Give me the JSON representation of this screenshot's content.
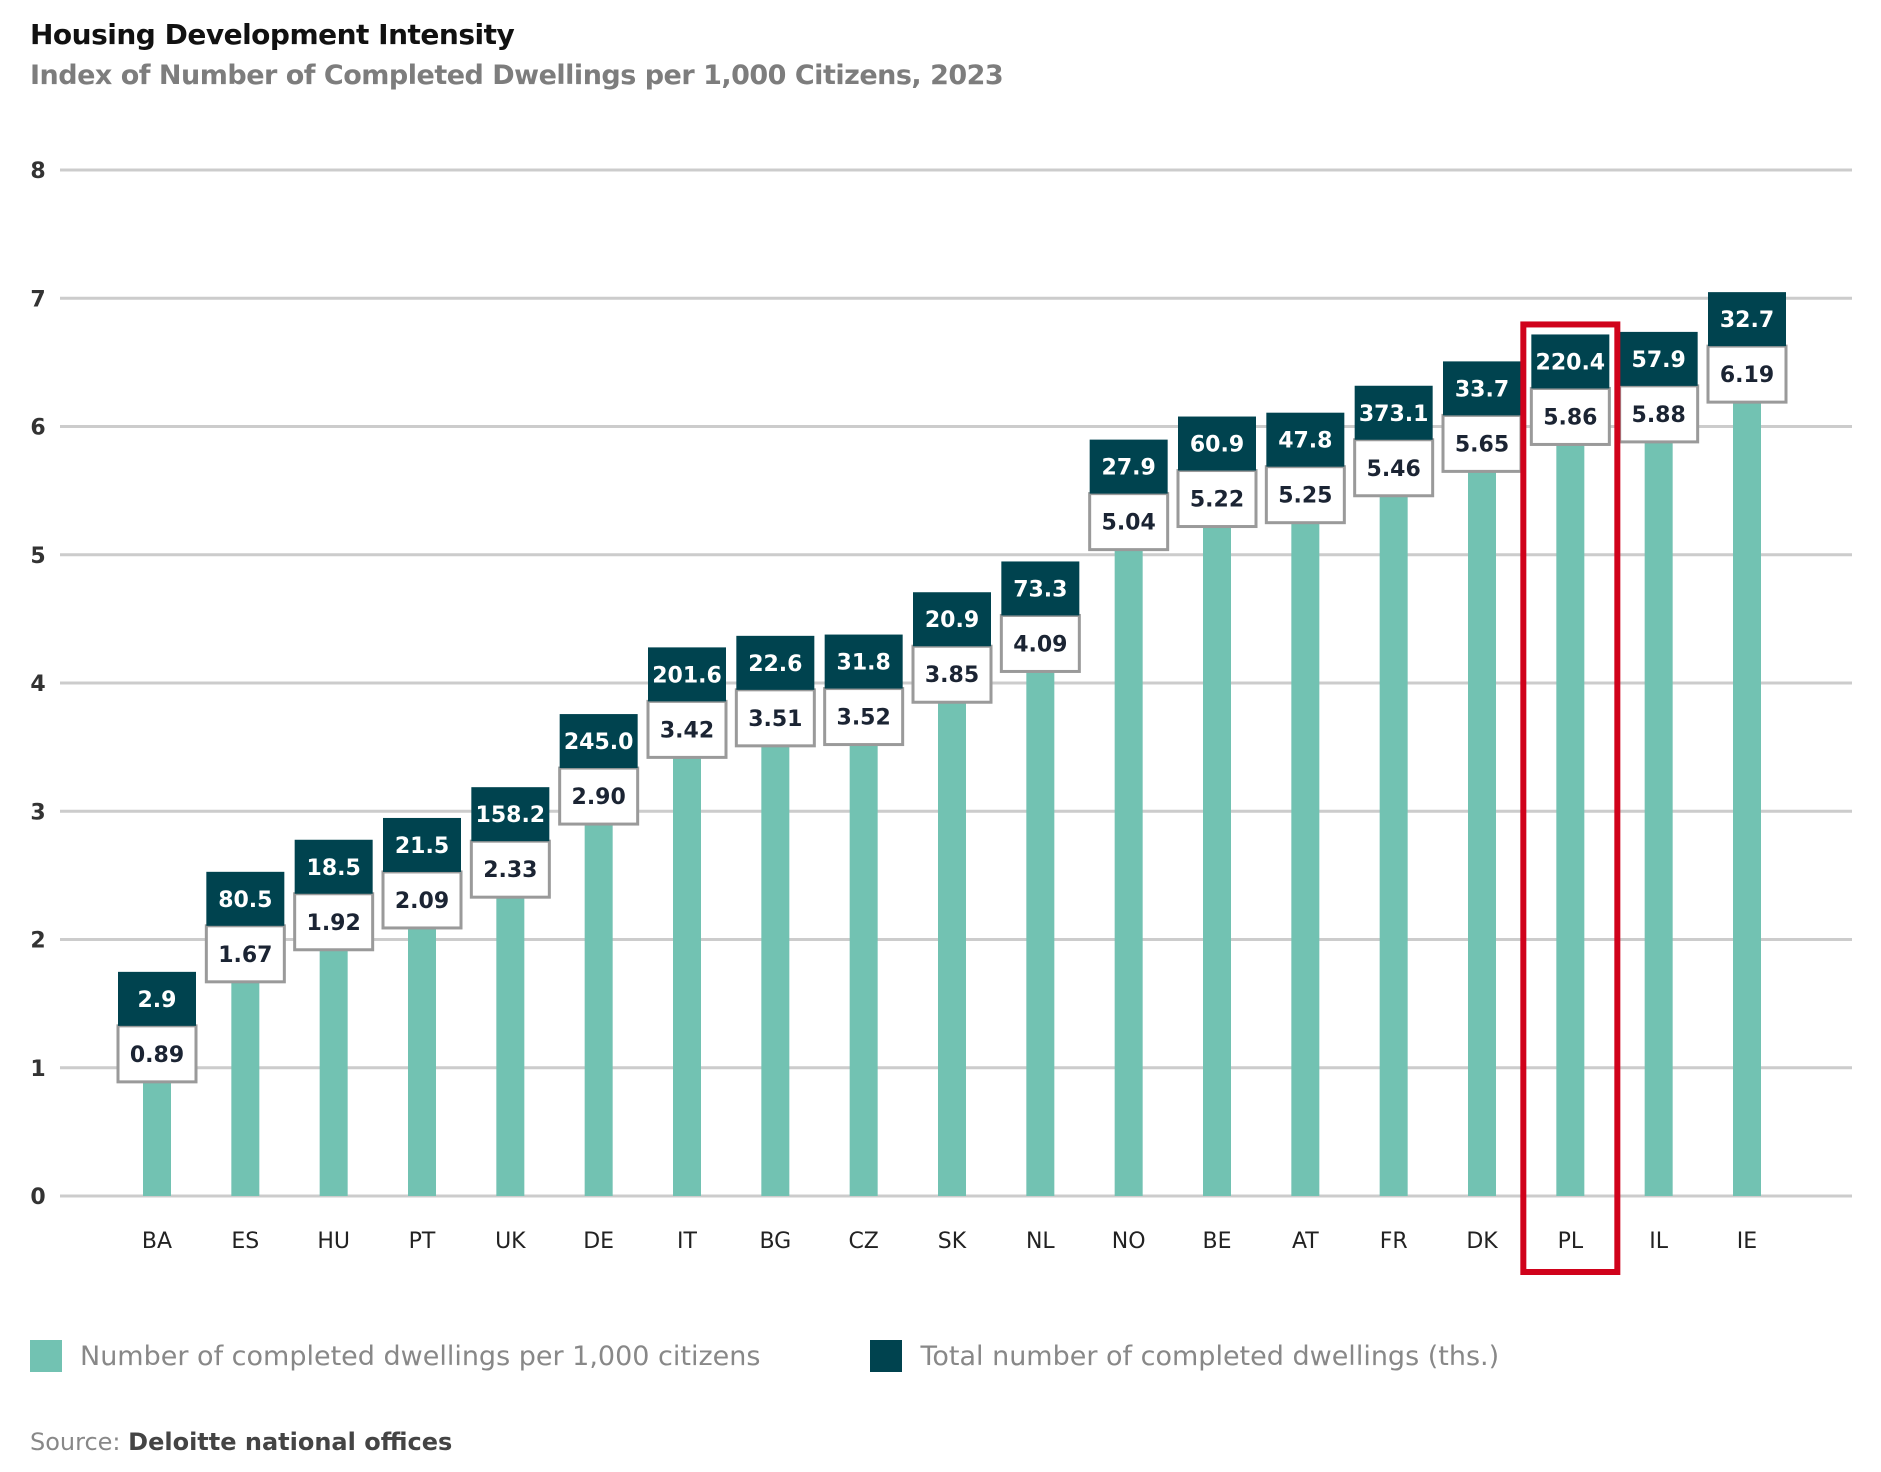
{
  "header": {
    "title": "Housing Development Intensity",
    "subtitle": "Index of Number of Completed Dwellings per 1,000 Citizens, 2023"
  },
  "colors": {
    "per_capita": "#72c2b2",
    "total": "#00434f",
    "highlight": "#d0021b",
    "grid": "#cccccc"
  },
  "chart_data": {
    "type": "bar",
    "title": "Housing Development Intensity",
    "subtitle": "Index of Number of Completed Dwellings per 1,000 Citizens, 2023",
    "xlabel": "",
    "ylabel": "",
    "ylim": [
      0,
      8
    ],
    "yticks": [
      0,
      1,
      2,
      3,
      4,
      5,
      6,
      7,
      8
    ],
    "grid": true,
    "legend_position": "bottom",
    "categories": [
      "BA",
      "ES",
      "HU",
      "PT",
      "UK",
      "DE",
      "IT",
      "BG",
      "CZ",
      "SK",
      "NL",
      "NO",
      "BE",
      "AT",
      "FR",
      "DK",
      "PL",
      "IL",
      "IE"
    ],
    "series": [
      {
        "name": "Number of completed dwellings per 1,000 citizens",
        "values": [
          0.89,
          1.67,
          1.92,
          2.09,
          2.33,
          2.9,
          3.42,
          3.51,
          3.52,
          3.85,
          4.09,
          5.04,
          5.22,
          5.25,
          5.46,
          5.65,
          5.86,
          5.88,
          6.19
        ],
        "labels": [
          "0.89",
          "1.67",
          "1.92",
          "2.09",
          "2.33",
          "2.90",
          "3.42",
          "3.51",
          "3.52",
          "3.85",
          "4.09",
          "5.04",
          "5.22",
          "5.25",
          "5.46",
          "5.65",
          "5.86",
          "5.88",
          "6.19"
        ]
      },
      {
        "name": "Total number of completed dwellings (ths.)",
        "values": [
          2.9,
          80.5,
          18.5,
          21.5,
          158.2,
          245.0,
          201.6,
          22.6,
          31.8,
          20.9,
          73.3,
          27.9,
          60.9,
          47.8,
          373.1,
          33.7,
          220.4,
          57.9,
          32.7
        ],
        "labels": [
          "2.9",
          "80.5",
          "18.5",
          "21.5",
          "158.2",
          "245.0",
          "201.6",
          "22.6",
          "31.8",
          "20.9",
          "73.3",
          "27.9",
          "60.9",
          "47.8",
          "373.1",
          "33.7",
          "220.4",
          "57.9",
          "32.7"
        ]
      }
    ],
    "highlighted_category": "PL"
  },
  "legend": {
    "items": [
      {
        "label": "Number of completed dwellings per 1,000 citizens"
      },
      {
        "label": "Total number of completed dwellings (ths.)"
      }
    ]
  },
  "source": {
    "prefix": "Source:",
    "text": "Deloitte national offices"
  }
}
